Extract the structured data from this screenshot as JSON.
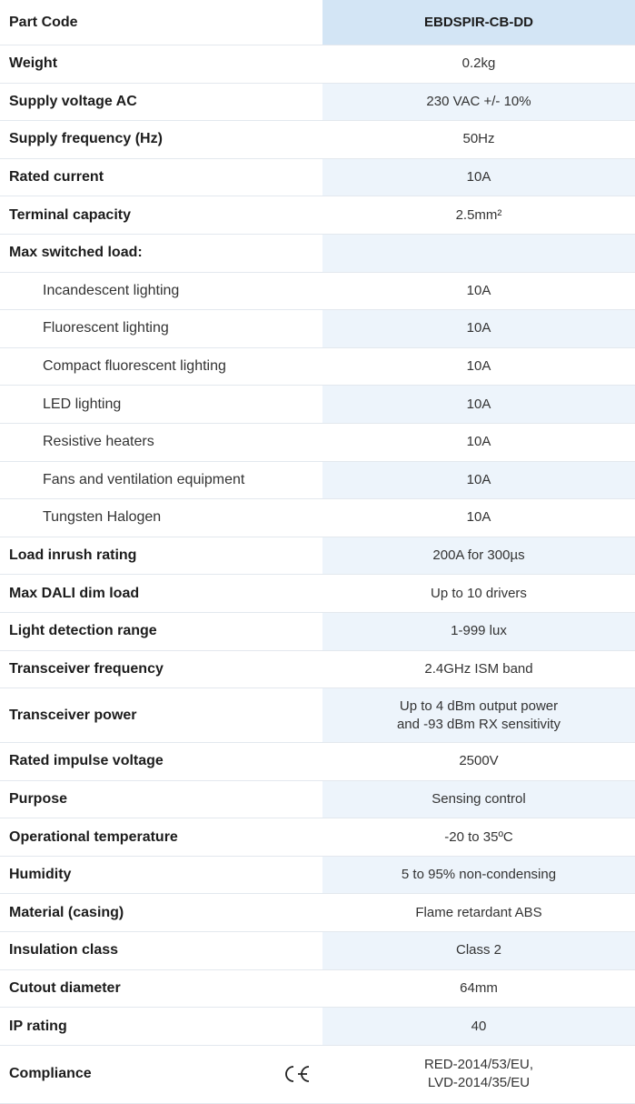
{
  "table": {
    "header": [
      "Part Code",
      "EBDSPIR-CB-DD"
    ],
    "rows": [
      {
        "label": "Weight",
        "value": [
          "0.2kg"
        ]
      },
      {
        "label": "Supply voltage AC",
        "value": [
          "230 VAC +/- 10%"
        ]
      },
      {
        "label": "Supply frequency (Hz)",
        "value": [
          "50Hz"
        ]
      },
      {
        "label": "Rated current",
        "value": [
          "10A"
        ]
      },
      {
        "label": "Terminal capacity",
        "value": [
          "2.5mm²"
        ]
      },
      {
        "label": "Max switched load:"
      },
      {
        "label": "Incandescent lighting",
        "value": [
          "10A"
        ],
        "indent": true
      },
      {
        "label": "Fluorescent lighting",
        "value": [
          "10A"
        ],
        "indent": true
      },
      {
        "label": "Compact fluorescent lighting",
        "value": [
          "10A"
        ],
        "indent": true
      },
      {
        "label": "LED lighting",
        "value": [
          "10A"
        ],
        "indent": true
      },
      {
        "label": "Resistive heaters",
        "value": [
          "10A"
        ],
        "indent": true
      },
      {
        "label": "Fans and ventilation equipment",
        "value": [
          "10A"
        ],
        "indent": true
      },
      {
        "label": "Tungsten Halogen",
        "value": [
          "10A"
        ],
        "indent": true
      },
      {
        "label": "Load inrush rating",
        "value": [
          "200A for 300µs"
        ]
      },
      {
        "label": "Max DALI dim load",
        "value": [
          "Up to 10 drivers"
        ]
      },
      {
        "label": "Light detection range",
        "value": [
          "1-999 lux"
        ]
      },
      {
        "label": "Transceiver frequency",
        "value": [
          "2.4GHz ISM band"
        ]
      },
      {
        "label": "Transceiver power",
        "value": [
          "Up to 4 dBm output power",
          "and -93 dBm RX sensitivity"
        ]
      },
      {
        "label": "Rated impulse voltage",
        "value": [
          "2500V"
        ]
      },
      {
        "label": "Purpose",
        "value": [
          "Sensing control"
        ]
      },
      {
        "label": "Operational temperature",
        "value": [
          "-20 to 35ºC"
        ]
      },
      {
        "label": "Humidity",
        "value": [
          "5 to 95% non-condensing"
        ]
      },
      {
        "label": "Material (casing)",
        "value": [
          "Flame retardant ABS"
        ]
      },
      {
        "label": "Insulation class",
        "value": [
          "Class 2"
        ]
      },
      {
        "label": "Cutout diameter",
        "value": [
          "64mm"
        ]
      },
      {
        "label": "IP rating",
        "value": [
          "40"
        ]
      },
      {
        "label": "Compliance",
        "value": [
          "RED-2014/53/EU,",
          "LVD-2014/35/EU"
        ],
        "ce_mark": true
      }
    ]
  }
}
